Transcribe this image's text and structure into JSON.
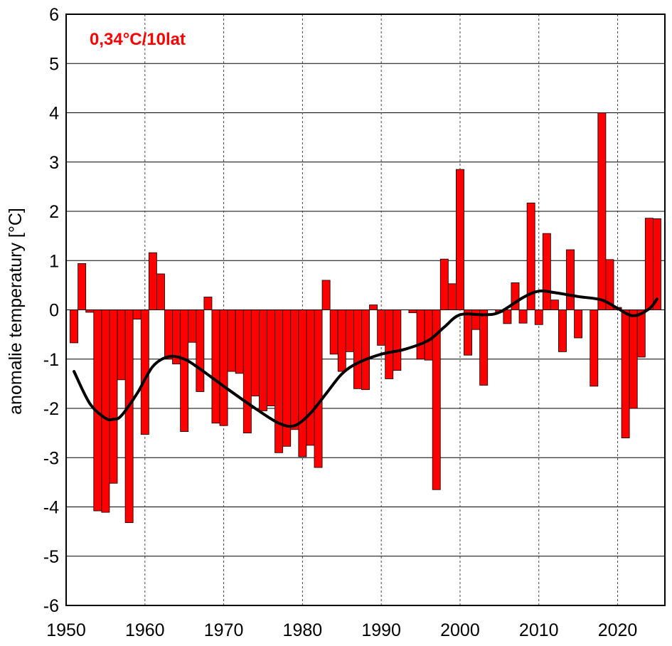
{
  "chart_data": {
    "type": "bar",
    "xlim": [
      1950,
      2026
    ],
    "ylim": [
      -6,
      6
    ],
    "x_ticks": [
      1950,
      1960,
      1970,
      1980,
      1990,
      2000,
      2010,
      2020
    ],
    "y_ticks": [
      6,
      5,
      4,
      3,
      2,
      1,
      0,
      -1,
      -2,
      -3,
      -4,
      -5,
      -6
    ],
    "ylabel": "anomalie temperatury [°C]",
    "xlabel": "",
    "title": "",
    "annotation": "0,34°C/10lat",
    "grid": {
      "horizontal": "solid",
      "vertical": "dashed"
    },
    "colors": {
      "bars": "#ff0000",
      "bar_edge": "#000000",
      "trend": "#000000",
      "annotation": "#ff0000"
    },
    "bars": {
      "years": [
        1951,
        1952,
        1953,
        1954,
        1955,
        1956,
        1957,
        1958,
        1959,
        1960,
        1961,
        1962,
        1963,
        1964,
        1965,
        1966,
        1967,
        1968,
        1969,
        1970,
        1971,
        1972,
        1973,
        1974,
        1975,
        1976,
        1977,
        1978,
        1979,
        1980,
        1981,
        1982,
        1983,
        1984,
        1985,
        1986,
        1987,
        1988,
        1989,
        1990,
        1991,
        1992,
        1993,
        1994,
        1995,
        1996,
        1997,
        1998,
        1999,
        2000,
        2001,
        2002,
        2003,
        2004,
        2005,
        2006,
        2007,
        2008,
        2009,
        2010,
        2011,
        2012,
        2013,
        2014,
        2015,
        2016,
        2017,
        2018,
        2019,
        2020,
        2021,
        2022,
        2023,
        2024,
        2025
      ],
      "values": [
        -0.67,
        0.94,
        -0.05,
        -4.08,
        -4.11,
        -3.52,
        -1.42,
        -4.32,
        -0.19,
        -2.53,
        1.16,
        0.73,
        -1.0,
        -1.1,
        -2.47,
        -0.66,
        -1.66,
        0.26,
        -2.3,
        -2.35,
        -1.25,
        -1.29,
        -2.5,
        -1.75,
        -2.05,
        -1.95,
        -2.9,
        -2.77,
        -2.43,
        -2.98,
        -2.75,
        -3.2,
        0.6,
        -0.9,
        -1.25,
        -0.85,
        -1.6,
        -1.62,
        0.1,
        -0.72,
        -1.4,
        -1.23,
        0.0,
        -0.06,
        -1.0,
        -1.02,
        -3.65,
        1.03,
        0.53,
        2.85,
        -0.92,
        -0.4,
        -1.53,
        0.0,
        -0.05,
        -0.28,
        0.55,
        -0.27,
        2.17,
        -0.3,
        1.55,
        0.2,
        -0.85,
        1.22,
        -0.57,
        0.0,
        -1.55,
        4.0,
        1.02,
        0.05,
        -2.6,
        -2.0,
        -0.96,
        1.86,
        1.85
      ]
    },
    "trend": {
      "x": [
        1951,
        1953,
        1955,
        1956,
        1957,
        1959,
        1961,
        1963,
        1965,
        1967,
        1970,
        1974,
        1977,
        1979,
        1981,
        1983,
        1985,
        1987,
        1990,
        1993,
        1996,
        1998,
        2000,
        2003,
        2005,
        2008,
        2010,
        2012,
        2015,
        2018,
        2020,
        2022,
        2024,
        2025
      ],
      "y": [
        -1.25,
        -1.9,
        -2.2,
        -2.22,
        -2.15,
        -1.7,
        -1.15,
        -0.95,
        -1.0,
        -1.2,
        -1.55,
        -2.0,
        -2.3,
        -2.35,
        -2.1,
        -1.7,
        -1.3,
        -1.08,
        -0.9,
        -0.8,
        -0.62,
        -0.35,
        -0.1,
        -0.1,
        -0.05,
        0.25,
        0.38,
        0.35,
        0.27,
        0.2,
        0.03,
        -0.12,
        0.02,
        0.22
      ]
    }
  }
}
